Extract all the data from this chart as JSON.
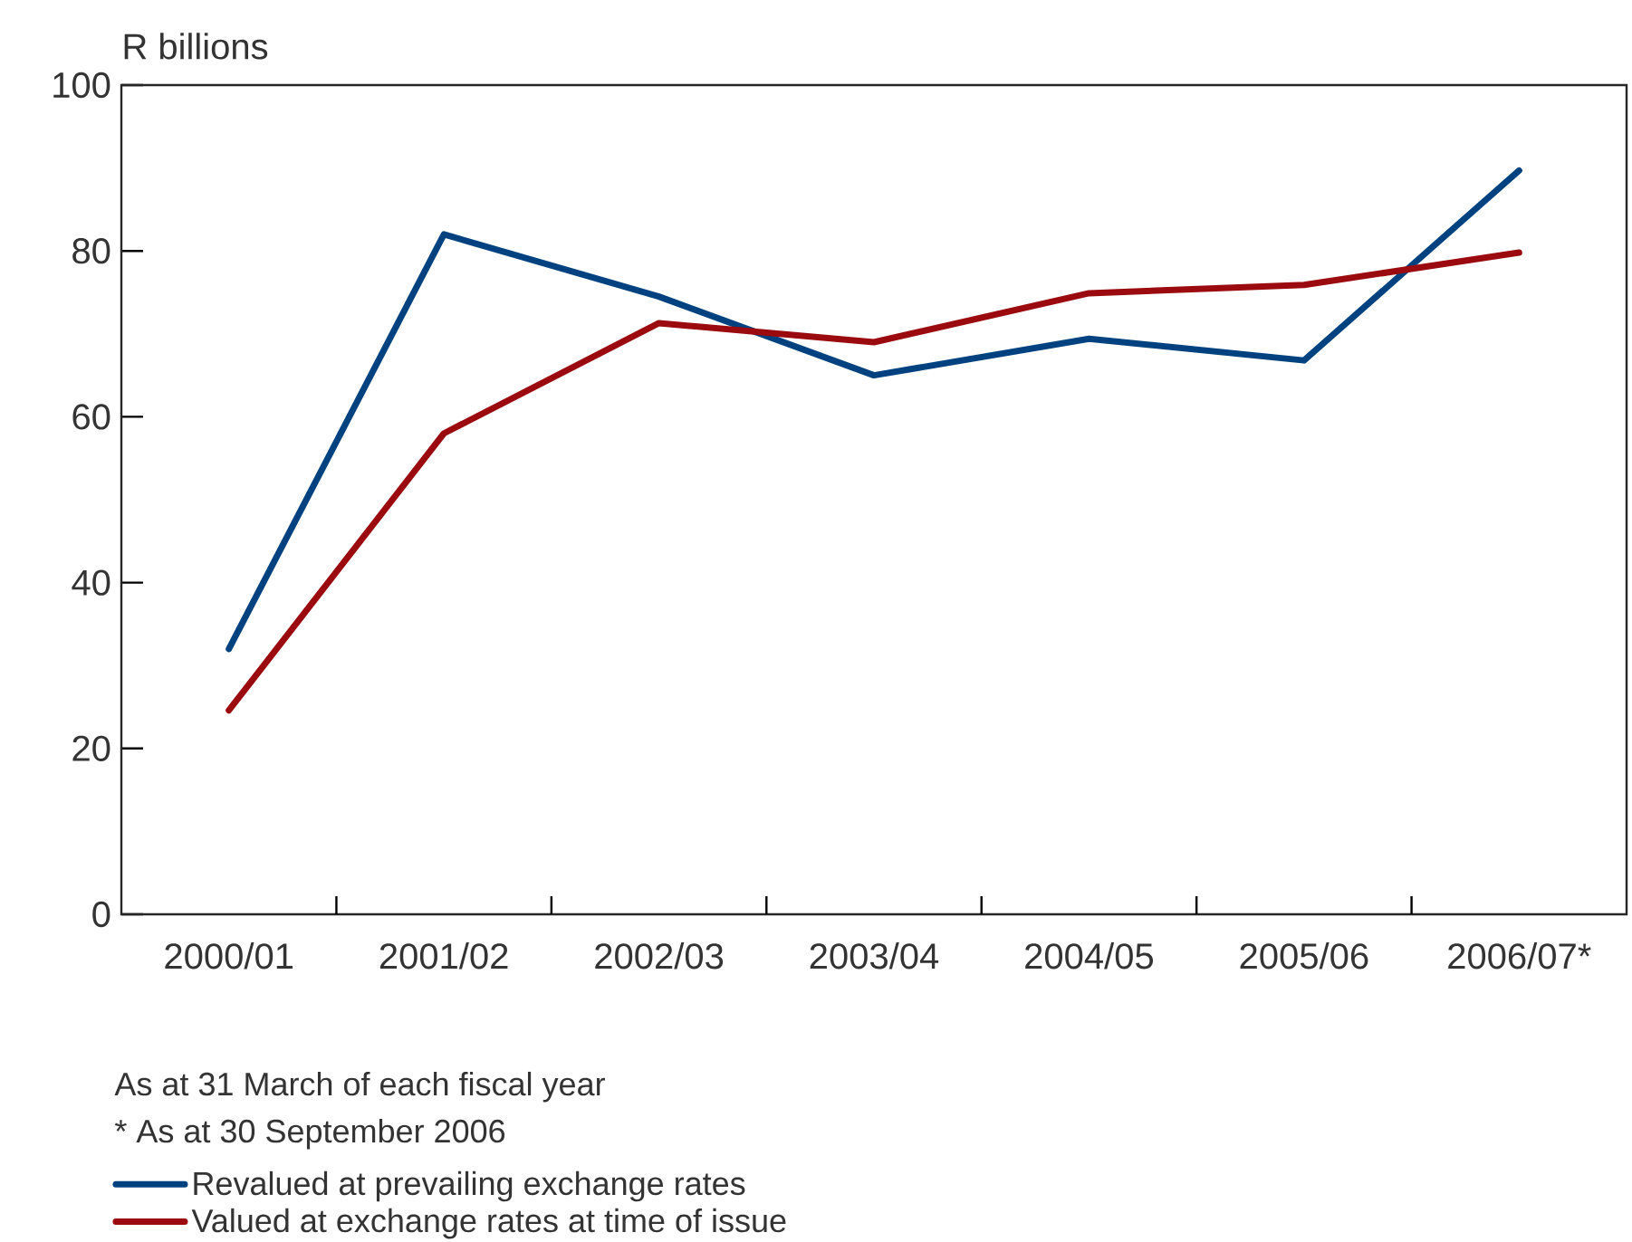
{
  "chart_data": {
    "type": "line",
    "ylabel": "R billions",
    "categories": [
      "2000/01",
      "2001/02",
      "2002/03",
      "2003/04",
      "2004/05",
      "2005/06",
      "2006/07*"
    ],
    "series": [
      {
        "name": "Revalued at prevailing exchange rates",
        "color": "#00427f",
        "values": [
          32,
          82,
          74.5,
          65,
          69.4,
          66.8,
          89.7
        ]
      },
      {
        "name": "Valued at exchange rates at time of issue",
        "color": "#9b0a0e",
        "values": [
          24.6,
          58,
          71.3,
          69,
          74.9,
          75.9,
          79.8
        ]
      }
    ],
    "ylim": [
      0,
      100
    ],
    "yticks": [
      0,
      20,
      40,
      60,
      80,
      100
    ],
    "annotations": [
      "As at 31 March of each fiscal year",
      "* As at 30 September 2006"
    ],
    "legend": "bottom",
    "line_style": "solid",
    "marker": "none"
  }
}
